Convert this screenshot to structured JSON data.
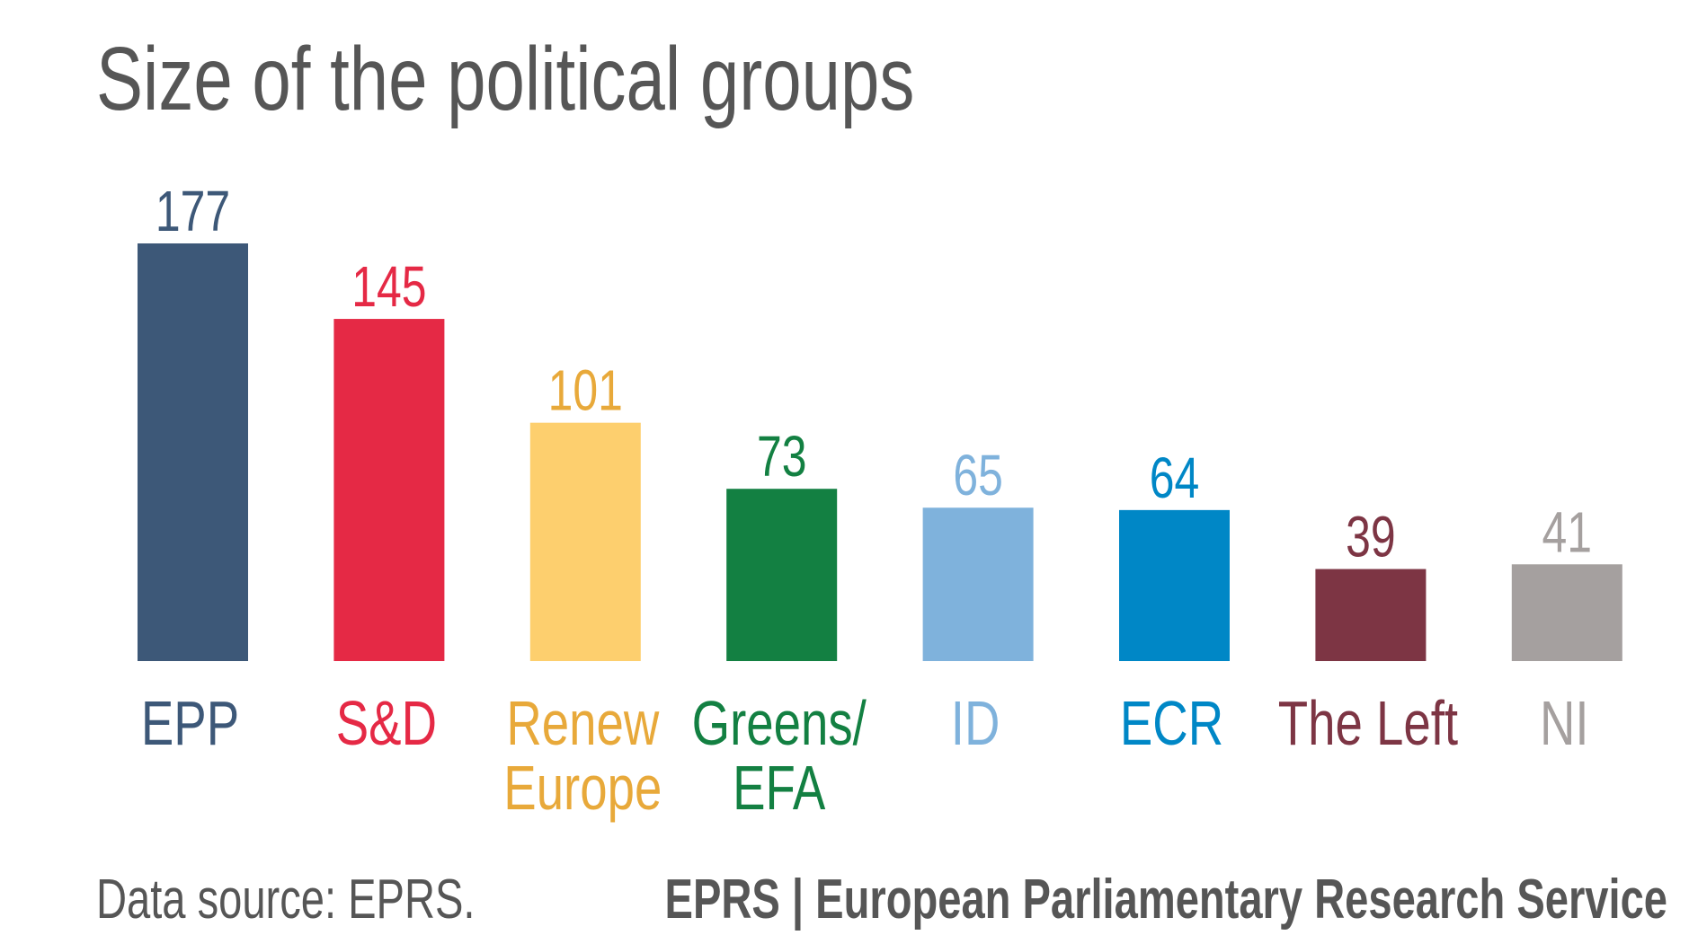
{
  "chart_data": {
    "type": "bar",
    "title": "Size of the political groups",
    "categories": [
      "EPP",
      "S&D",
      "Renew Europe",
      "Greens/ EFA",
      "ID",
      "ECR",
      "The Left",
      "NI"
    ],
    "category_lines": [
      [
        "EPP"
      ],
      [
        "S&D"
      ],
      [
        "Renew",
        "Europe"
      ],
      [
        "Greens/",
        "EFA"
      ],
      [
        "ID"
      ],
      [
        "ECR"
      ],
      [
        "The Left"
      ],
      [
        "NI"
      ]
    ],
    "values": [
      177,
      145,
      101,
      73,
      65,
      64,
      39,
      41
    ],
    "bar_colors": [
      "#3d5878",
      "#e52945",
      "#fdcf6e",
      "#138042",
      "#7fb2dc",
      "#0087c6",
      "#7d3544",
      "#a5a09f"
    ],
    "label_colors": [
      "#3d5878",
      "#e52945",
      "#e8a93a",
      "#138042",
      "#7fb2dc",
      "#0087c6",
      "#7d3544",
      "#a5a09f"
    ],
    "xlabel": "",
    "ylabel": "",
    "ylim": [
      0,
      177
    ],
    "grid": false,
    "legend": "none",
    "data_labels": true
  },
  "footer": {
    "source": "Data source: EPRS.",
    "credit": "EPRS | European Parliamentary Research Service"
  },
  "colors": {
    "text": "#565656"
  }
}
